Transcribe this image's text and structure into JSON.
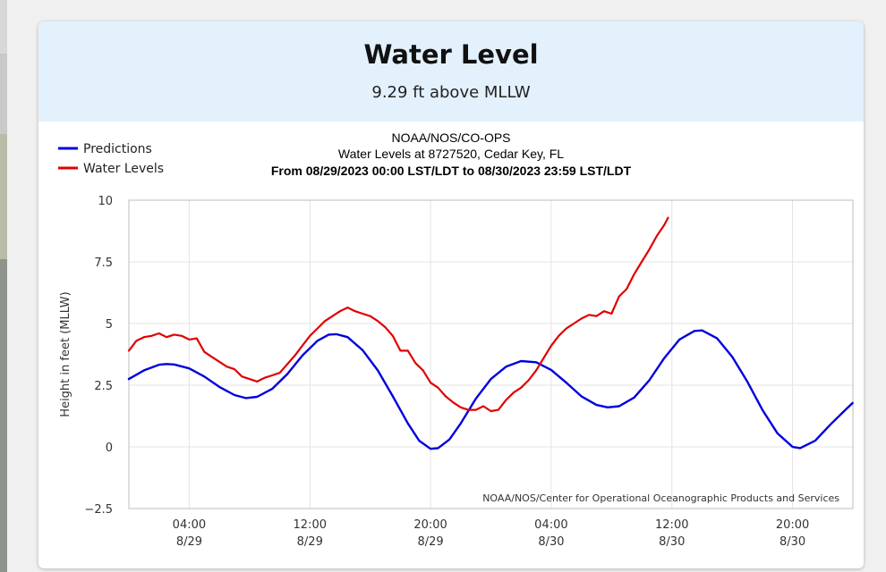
{
  "card": {
    "title": "Water Level",
    "subtitle": "9.29 ft above MLLW"
  },
  "chart_data": {
    "type": "line",
    "header_lines": [
      "NOAA/NOS/CO-OPS",
      "Water Levels at 8727520, Cedar Key, FL",
      "From 08/29/2023 00:00 LST/LDT to 08/30/2023 23:59 LST/LDT"
    ],
    "ylabel": "Height in feet (MLLW)",
    "xlabel": "",
    "ylim": [
      -2.5,
      10
    ],
    "xlim": [
      "08/29/2023 00:00",
      "08/30/2023 23:59"
    ],
    "y_ticks": [
      "10",
      "7.5",
      "5",
      "2.5",
      "0",
      "−2.5"
    ],
    "y_tick_values": [
      10,
      7.5,
      5,
      2.5,
      0,
      -2.5
    ],
    "x_ticks": [
      {
        "at": "08/29/2023 04:00",
        "time": "04:00",
        "date": "8/29"
      },
      {
        "at": "08/29/2023 12:00",
        "time": "12:00",
        "date": "8/29"
      },
      {
        "at": "08/29/2023 20:00",
        "time": "20:00",
        "date": "8/29"
      },
      {
        "at": "08/30/2023 04:00",
        "time": "04:00",
        "date": "8/30"
      },
      {
        "at": "08/30/2023 12:00",
        "time": "12:00",
        "date": "8/30"
      },
      {
        "at": "08/30/2023 20:00",
        "time": "20:00",
        "date": "8/30"
      }
    ],
    "grid": true,
    "legend_position": "top-left",
    "credit": "NOAA/NOS/Center for Operational Oceanographic Products and Services",
    "series": [
      {
        "name": "Predictions",
        "color": "#0000dd",
        "points": [
          [
            "08/29/2023 00:00",
            2.75
          ],
          [
            "08/29/2023 01:00",
            3.1
          ],
          [
            "08/29/2023 02:00",
            3.33
          ],
          [
            "08/29/2023 02:30",
            3.36
          ],
          [
            "08/29/2023 03:00",
            3.34
          ],
          [
            "08/29/2023 04:00",
            3.18
          ],
          [
            "08/29/2023 05:00",
            2.85
          ],
          [
            "08/29/2023 06:00",
            2.43
          ],
          [
            "08/29/2023 07:00",
            2.1
          ],
          [
            "08/29/2023 07:45",
            1.98
          ],
          [
            "08/29/2023 08:30",
            2.03
          ],
          [
            "08/29/2023 09:30",
            2.35
          ],
          [
            "08/29/2023 10:30",
            2.95
          ],
          [
            "08/29/2023 11:30",
            3.7
          ],
          [
            "08/29/2023 12:30",
            4.3
          ],
          [
            "08/29/2023 13:15",
            4.55
          ],
          [
            "08/29/2023 13:45",
            4.57
          ],
          [
            "08/29/2023 14:30",
            4.45
          ],
          [
            "08/29/2023 15:30",
            3.92
          ],
          [
            "08/29/2023 16:30",
            3.1
          ],
          [
            "08/29/2023 17:30",
            2.05
          ],
          [
            "08/29/2023 18:30",
            0.95
          ],
          [
            "08/29/2023 19:15",
            0.25
          ],
          [
            "08/29/2023 20:00",
            -0.08
          ],
          [
            "08/29/2023 20:30",
            -0.05
          ],
          [
            "08/29/2023 21:15",
            0.3
          ],
          [
            "08/29/2023 22:00",
            0.95
          ],
          [
            "08/29/2023 23:00",
            1.95
          ],
          [
            "08/30/2023 00:00",
            2.75
          ],
          [
            "08/30/2023 01:00",
            3.25
          ],
          [
            "08/30/2023 02:00",
            3.48
          ],
          [
            "08/30/2023 03:00",
            3.43
          ],
          [
            "08/30/2023 04:00",
            3.12
          ],
          [
            "08/30/2023 05:00",
            2.6
          ],
          [
            "08/30/2023 06:00",
            2.05
          ],
          [
            "08/30/2023 07:00",
            1.7
          ],
          [
            "08/30/2023 07:45",
            1.6
          ],
          [
            "08/30/2023 08:30",
            1.65
          ],
          [
            "08/30/2023 09:30",
            2.0
          ],
          [
            "08/30/2023 10:30",
            2.7
          ],
          [
            "08/30/2023 11:30",
            3.6
          ],
          [
            "08/30/2023 12:30",
            4.35
          ],
          [
            "08/30/2023 13:30",
            4.7
          ],
          [
            "08/30/2023 14:00",
            4.72
          ],
          [
            "08/30/2023 15:00",
            4.4
          ],
          [
            "08/30/2023 16:00",
            3.65
          ],
          [
            "08/30/2023 17:00",
            2.65
          ],
          [
            "08/30/2023 18:00",
            1.5
          ],
          [
            "08/30/2023 19:00",
            0.55
          ],
          [
            "08/30/2023 20:00",
            0.0
          ],
          [
            "08/30/2023 20:30",
            -0.05
          ],
          [
            "08/30/2023 21:30",
            0.25
          ],
          [
            "08/30/2023 22:30",
            0.9
          ],
          [
            "08/30/2023 23:30",
            1.5
          ],
          [
            "08/30/2023 23:59",
            1.78
          ]
        ]
      },
      {
        "name": "Water Levels",
        "color": "#e00000",
        "points": [
          [
            "08/29/2023 00:00",
            3.9
          ],
          [
            "08/29/2023 00:30",
            4.3
          ],
          [
            "08/29/2023 01:00",
            4.45
          ],
          [
            "08/29/2023 01:30",
            4.5
          ],
          [
            "08/29/2023 02:00",
            4.6
          ],
          [
            "08/29/2023 02:30",
            4.45
          ],
          [
            "08/29/2023 03:00",
            4.55
          ],
          [
            "08/29/2023 03:30",
            4.5
          ],
          [
            "08/29/2023 04:00",
            4.35
          ],
          [
            "08/29/2023 04:30",
            4.4
          ],
          [
            "08/29/2023 05:00",
            3.85
          ],
          [
            "08/29/2023 05:30",
            3.65
          ],
          [
            "08/29/2023 06:00",
            3.45
          ],
          [
            "08/29/2023 06:30",
            3.25
          ],
          [
            "08/29/2023 07:00",
            3.15
          ],
          [
            "08/29/2023 07:30",
            2.85
          ],
          [
            "08/29/2023 08:00",
            2.75
          ],
          [
            "08/29/2023 08:30",
            2.65
          ],
          [
            "08/29/2023 09:00",
            2.8
          ],
          [
            "08/29/2023 09:30",
            2.9
          ],
          [
            "08/29/2023 10:00",
            3.0
          ],
          [
            "08/29/2023 10:30",
            3.35
          ],
          [
            "08/29/2023 11:00",
            3.7
          ],
          [
            "08/29/2023 11:30",
            4.1
          ],
          [
            "08/29/2023 12:00",
            4.5
          ],
          [
            "08/29/2023 12:30",
            4.8
          ],
          [
            "08/29/2023 13:00",
            5.1
          ],
          [
            "08/29/2023 13:30",
            5.3
          ],
          [
            "08/29/2023 14:00",
            5.5
          ],
          [
            "08/29/2023 14:30",
            5.65
          ],
          [
            "08/29/2023 15:00",
            5.5
          ],
          [
            "08/29/2023 15:30",
            5.4
          ],
          [
            "08/29/2023 16:00",
            5.3
          ],
          [
            "08/29/2023 16:30",
            5.1
          ],
          [
            "08/29/2023 17:00",
            4.85
          ],
          [
            "08/29/2023 17:30",
            4.5
          ],
          [
            "08/29/2023 18:00",
            3.9
          ],
          [
            "08/29/2023 18:30",
            3.9
          ],
          [
            "08/29/2023 19:00",
            3.4
          ],
          [
            "08/29/2023 19:30",
            3.1
          ],
          [
            "08/29/2023 20:00",
            2.6
          ],
          [
            "08/29/2023 20:30",
            2.4
          ],
          [
            "08/29/2023 21:00",
            2.05
          ],
          [
            "08/29/2023 21:30",
            1.8
          ],
          [
            "08/29/2023 22:00",
            1.6
          ],
          [
            "08/29/2023 22:30",
            1.5
          ],
          [
            "08/29/2023 23:00",
            1.5
          ],
          [
            "08/29/2023 23:30",
            1.65
          ],
          [
            "08/30/2023 00:00",
            1.45
          ],
          [
            "08/30/2023 00:30",
            1.5
          ],
          [
            "08/30/2023 01:00",
            1.9
          ],
          [
            "08/30/2023 01:30",
            2.2
          ],
          [
            "08/30/2023 02:00",
            2.4
          ],
          [
            "08/30/2023 02:30",
            2.7
          ],
          [
            "08/30/2023 03:00",
            3.1
          ],
          [
            "08/30/2023 03:30",
            3.6
          ],
          [
            "08/30/2023 04:00",
            4.1
          ],
          [
            "08/30/2023 04:30",
            4.5
          ],
          [
            "08/30/2023 05:00",
            4.8
          ],
          [
            "08/30/2023 05:30",
            5.0
          ],
          [
            "08/30/2023 06:00",
            5.2
          ],
          [
            "08/30/2023 06:30",
            5.35
          ],
          [
            "08/30/2023 07:00",
            5.3
          ],
          [
            "08/30/2023 07:30",
            5.5
          ],
          [
            "08/30/2023 08:00",
            5.4
          ],
          [
            "08/30/2023 08:30",
            6.1
          ],
          [
            "08/30/2023 09:00",
            6.4
          ],
          [
            "08/30/2023 09:30",
            7.0
          ],
          [
            "08/30/2023 10:00",
            7.5
          ],
          [
            "08/30/2023 10:30",
            8.0
          ],
          [
            "08/30/2023 11:00",
            8.55
          ],
          [
            "08/30/2023 11:30",
            9.0
          ],
          [
            "08/30/2023 11:45",
            9.29
          ]
        ]
      }
    ]
  }
}
